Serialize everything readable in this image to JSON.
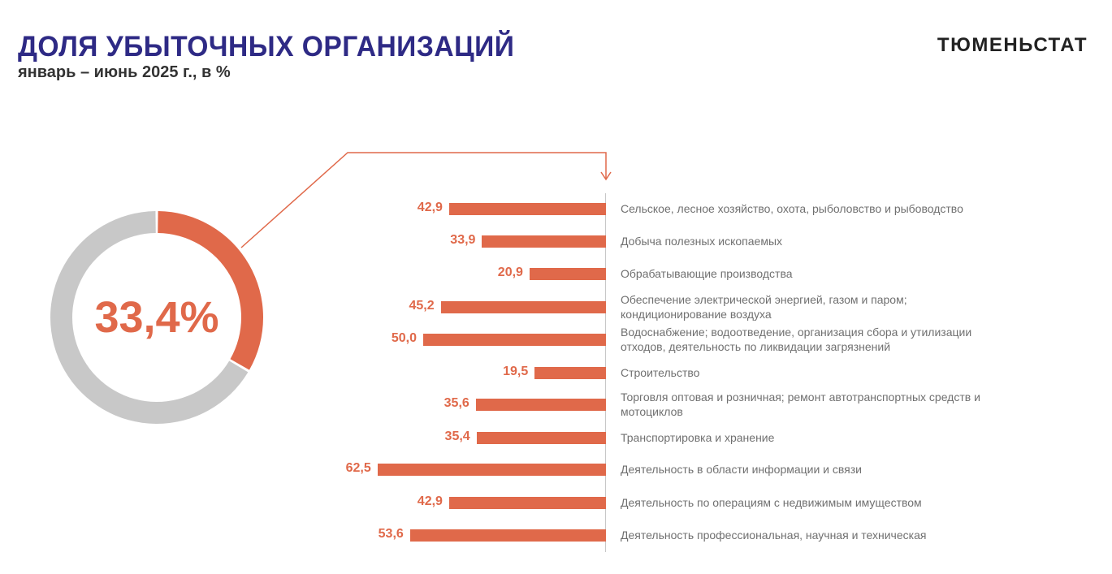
{
  "header": {
    "title": "ДОЛЯ УБЫТОЧНЫХ ОРГАНИЗАЦИЙ",
    "subtitle": "январь – июнь 2025 г., в %",
    "brand": "ТЮМЕНЬСТАТ"
  },
  "chart_data": [
    {
      "type": "pie",
      "variant": "donut",
      "values": [
        33.4,
        66.6
      ],
      "center_label": "33,4%",
      "colors": [
        "#e0694a",
        "#c8c8c8"
      ]
    },
    {
      "type": "bar",
      "orientation": "horizontal",
      "color": "#e0694a",
      "categories": [
        "Сельское, лесное хозяйство, охота, рыболовство и рыбоводство",
        "Добыча полезных ископаемых",
        "Обрабатывающие производства",
        "Обеспечение электрической энергией, газом и паром; кондиционирование воздуха",
        "Водоснабжение; водоотведение, организация сбора и утилизации отходов, деятельность по ликвидации загрязнений",
        "Строительство",
        "Торговля оптовая и розничная; ремонт автотранспортных средств и мотоциклов",
        "Транспортировка и хранение",
        "Деятельность в области информации и связи",
        "Деятельность по операциям с недвижимым имуществом",
        "Деятельность профессиональная, научная и техническая"
      ],
      "values": [
        42.9,
        33.9,
        20.9,
        45.2,
        50.0,
        19.5,
        35.6,
        35.4,
        62.5,
        42.9,
        53.6
      ],
      "labels": [
        "42,9",
        "33,9",
        "20,9",
        "45,2",
        "50,0",
        "19,5",
        "35,6",
        "35,4",
        "62,5",
        "42,9",
        "53,6"
      ]
    }
  ]
}
